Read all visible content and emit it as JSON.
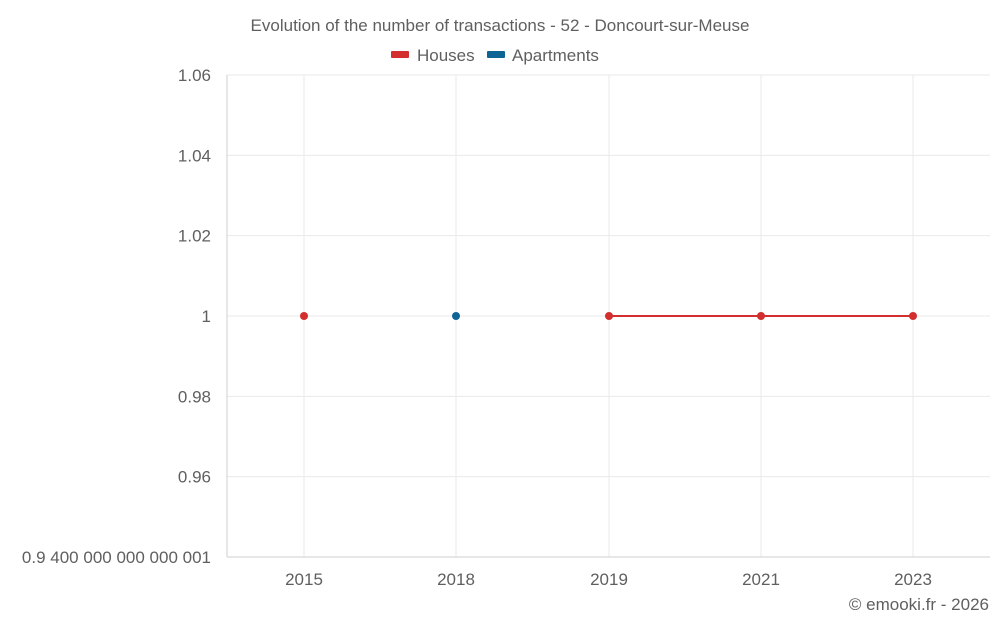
{
  "chart_data": {
    "type": "line",
    "title": "Evolution of the number of transactions - 52 - Doncourt-sur-Meuse",
    "categories": [
      "2015",
      "2018",
      "2019",
      "2021",
      "2023"
    ],
    "series": [
      {
        "name": "Houses",
        "color": "#d32f2f",
        "values": [
          1,
          null,
          1,
          1,
          1
        ]
      },
      {
        "name": "Apartments",
        "color": "#0f6496",
        "values": [
          null,
          1,
          null,
          null,
          null
        ]
      }
    ],
    "yticks": [
      "1.06",
      "1.04",
      "1.02",
      "1",
      "0.98",
      "0.96",
      "0.9 400 000 000 000 001"
    ],
    "ytick_values": [
      1.06,
      1.04,
      1.02,
      1,
      0.98,
      0.96,
      0.94
    ],
    "ylim": [
      0.94,
      1.06
    ],
    "xlabel": "",
    "ylabel": "",
    "legend_position": "top-center",
    "grid": true
  },
  "credit": "© emooki.fr - 2026"
}
